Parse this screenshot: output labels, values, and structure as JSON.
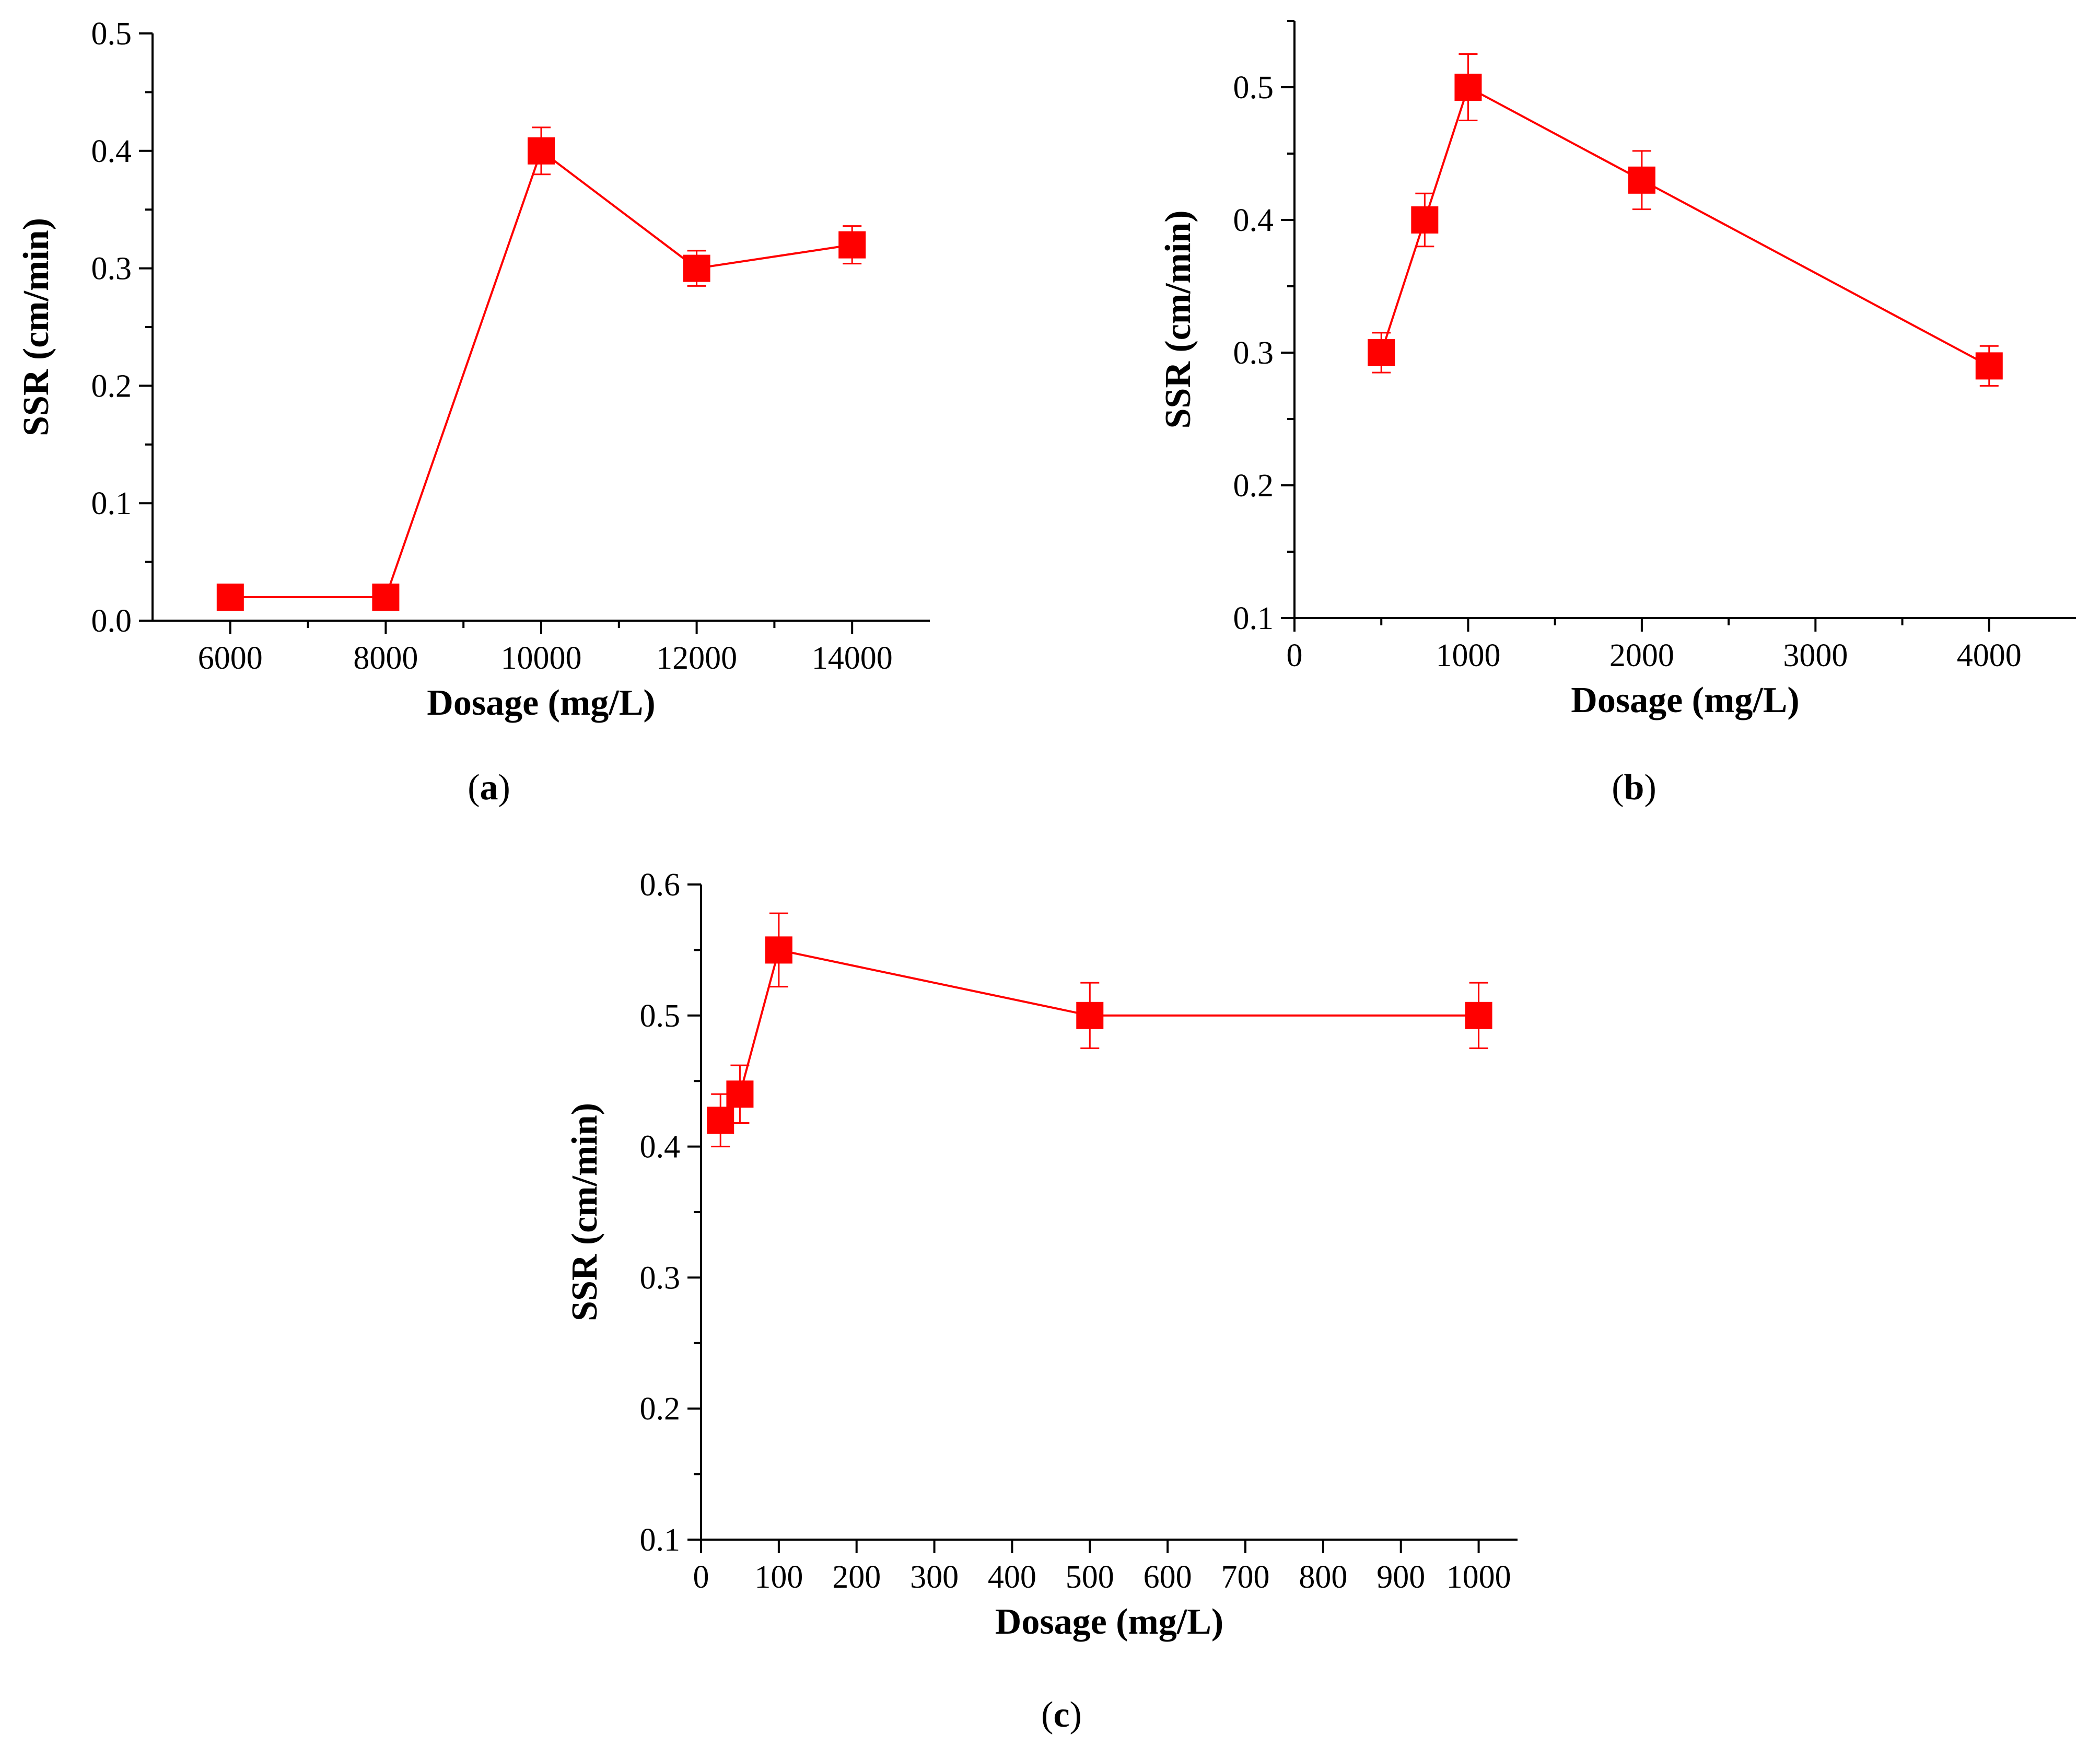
{
  "colors": {
    "series": "#ff0000",
    "marker": "#ff0000",
    "axis": "#000000"
  },
  "chart_data": [
    {
      "id": "a",
      "type": "line",
      "panel_label": {
        "open": "(",
        "letter": "a",
        "close": ")"
      },
      "xlabel": "Dosage (mg/L)",
      "ylabel": "SSR (cm/min)",
      "xlim": [
        5000,
        15000
      ],
      "ylim": [
        0.0,
        0.5
      ],
      "xticks": [
        6000,
        8000,
        10000,
        12000,
        14000
      ],
      "xtick_labels": [
        "6000",
        "8000",
        "10000",
        "12000",
        "14000"
      ],
      "yticks": [
        0.0,
        0.1,
        0.2,
        0.3,
        0.4,
        0.5
      ],
      "ytick_labels": [
        "0.0",
        "0.1",
        "0.2",
        "0.3",
        "0.4",
        "0.5"
      ],
      "series": [
        {
          "name": "SSR",
          "x": [
            6000,
            8000,
            10000,
            12000,
            14000
          ],
          "y": [
            0.02,
            0.02,
            0.4,
            0.3,
            0.32
          ],
          "yerr": [
            0.0,
            0.0,
            0.02,
            0.015,
            0.016
          ]
        }
      ]
    },
    {
      "id": "b",
      "type": "line",
      "panel_label": {
        "open": "(",
        "letter": "b",
        "close": ")"
      },
      "xlabel": "Dosage (mg/L)",
      "ylabel": "SSR (cm/min)",
      "xlim": [
        0,
        4500
      ],
      "ylim": [
        0.1,
        0.55
      ],
      "xticks": [
        0,
        1000,
        2000,
        3000,
        4000
      ],
      "xtick_labels": [
        "0",
        "1000",
        "2000",
        "3000",
        "4000"
      ],
      "yticks": [
        0.1,
        0.2,
        0.3,
        0.4,
        0.5
      ],
      "ytick_labels": [
        "0.1",
        "0.2",
        "0.3",
        "0.4",
        "0.5"
      ],
      "series": [
        {
          "name": "SSR",
          "x": [
            500,
            750,
            1000,
            2000,
            4000
          ],
          "y": [
            0.3,
            0.4,
            0.5,
            0.43,
            0.29
          ],
          "yerr": [
            0.015,
            0.02,
            0.025,
            0.022,
            0.015
          ]
        }
      ]
    },
    {
      "id": "c",
      "type": "line",
      "panel_label": {
        "open": "(",
        "letter": "c",
        "close": ")"
      },
      "xlabel": "Dosage (mg/L)",
      "ylabel": "SSR (cm/min)",
      "xlim": [
        0,
        1050
      ],
      "ylim": [
        0.1,
        0.6
      ],
      "xticks": [
        0,
        100,
        200,
        300,
        400,
        500,
        600,
        700,
        800,
        900,
        1000
      ],
      "xtick_labels": [
        "0",
        "100",
        "200",
        "300",
        "400",
        "500",
        "600",
        "700",
        "800",
        "900",
        "1000"
      ],
      "yticks": [
        0.1,
        0.2,
        0.3,
        0.4,
        0.5,
        0.6
      ],
      "ytick_labels": [
        "0.1",
        "0.2",
        "0.3",
        "0.4",
        "0.5",
        "0.6"
      ],
      "series": [
        {
          "name": "SSR",
          "x": [
            25,
            50,
            100,
            500,
            1000
          ],
          "y": [
            0.42,
            0.44,
            0.55,
            0.5,
            0.5
          ],
          "yerr": [
            0.02,
            0.022,
            0.028,
            0.025,
            0.025
          ]
        }
      ]
    }
  ]
}
